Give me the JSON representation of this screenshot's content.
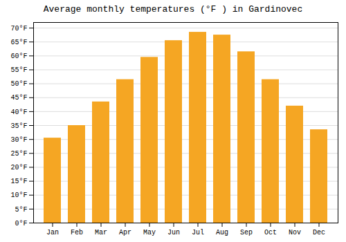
{
  "chart_data": {
    "type": "bar",
    "title": "Average monthly temperatures (°F ) in Gardinovec",
    "categories": [
      "Jan",
      "Feb",
      "Mar",
      "Apr",
      "May",
      "Jun",
      "Jul",
      "Aug",
      "Sep",
      "Oct",
      "Nov",
      "Dec"
    ],
    "values": [
      30.5,
      35.0,
      43.5,
      51.5,
      59.5,
      65.5,
      68.5,
      67.5,
      61.5,
      51.5,
      42.0,
      33.5
    ],
    "color": "#F5A623",
    "ylim": [
      0,
      72
    ],
    "yticks": [
      {
        "value": 0,
        "label": "0°F"
      },
      {
        "value": 5,
        "label": "5°F"
      },
      {
        "value": 10,
        "label": "10°F"
      },
      {
        "value": 15,
        "label": "15°F"
      },
      {
        "value": 20,
        "label": "20°F"
      },
      {
        "value": 25,
        "label": "25°F"
      },
      {
        "value": 30,
        "label": "30°F"
      },
      {
        "value": 35,
        "label": "35°F"
      },
      {
        "value": 40,
        "label": "40°F"
      },
      {
        "value": 45,
        "label": "45°F"
      },
      {
        "value": 50,
        "label": "50°F"
      },
      {
        "value": 55,
        "label": "55°F"
      },
      {
        "value": 60,
        "label": "60°F"
      },
      {
        "value": 65,
        "label": "65°F"
      },
      {
        "value": 70,
        "label": "70°F"
      }
    ],
    "grid": true
  }
}
